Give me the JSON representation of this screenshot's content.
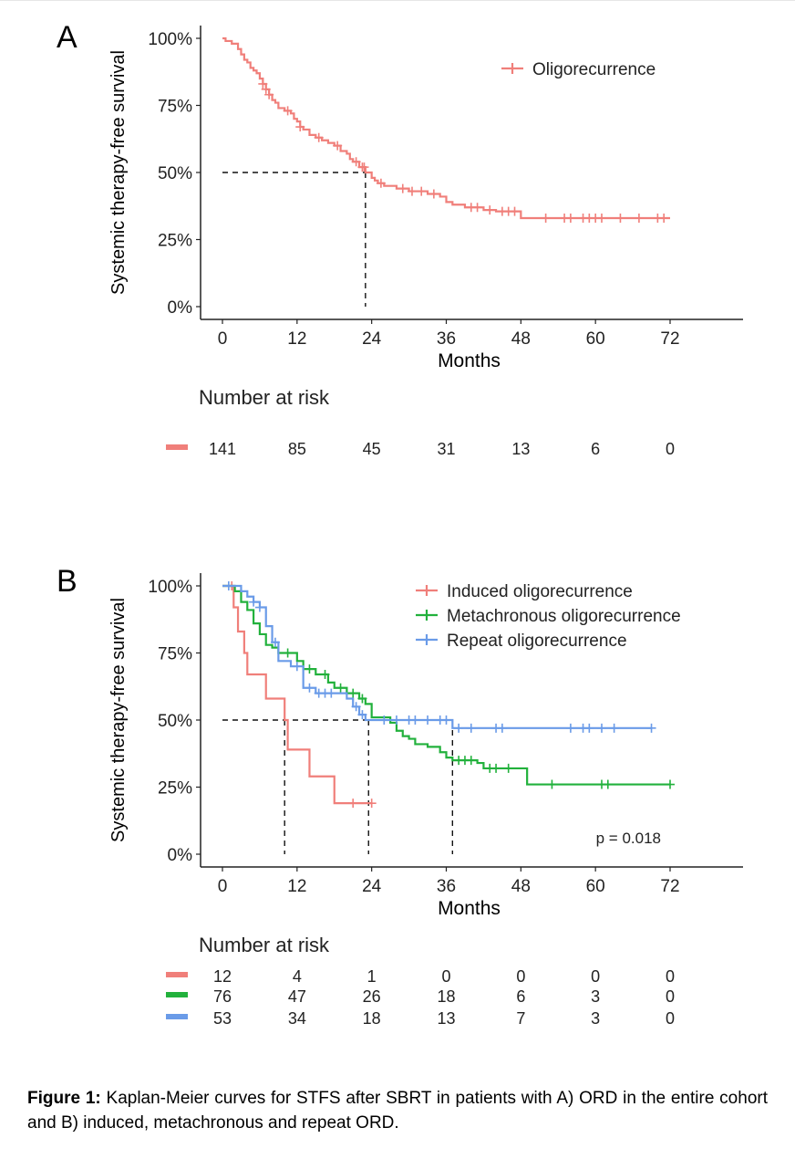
{
  "chart_data": [
    {
      "type": "line",
      "panel_label": "A",
      "ylabel": "Systemic therapy-free survival",
      "xlabel": "Months",
      "xticks": [
        "0",
        "12",
        "24",
        "36",
        "48",
        "60",
        "72"
      ],
      "yticks": [
        "0%",
        "25%",
        "50%",
        "75%",
        "100%"
      ],
      "xlim": [
        -3,
        82
      ],
      "ylim": [
        0,
        1
      ],
      "legend_position": "top-right",
      "median": {
        "x": 23,
        "y": 0.5
      },
      "series": [
        {
          "name": "Oligorecurrence",
          "color": "#F07F7A",
          "steps": [
            [
              0,
              1.0
            ],
            [
              0.5,
              0.99
            ],
            [
              1.5,
              0.98
            ],
            [
              2.5,
              0.96
            ],
            [
              3,
              0.94
            ],
            [
              3.5,
              0.92
            ],
            [
              4,
              0.91
            ],
            [
              4.5,
              0.89
            ],
            [
              5,
              0.88
            ],
            [
              5.5,
              0.87
            ],
            [
              6,
              0.85
            ],
            [
              6.5,
              0.83
            ],
            [
              7,
              0.81
            ],
            [
              7.5,
              0.79
            ],
            [
              8,
              0.77
            ],
            [
              8.5,
              0.76
            ],
            [
              9,
              0.74
            ],
            [
              10,
              0.73
            ],
            [
              11,
              0.72
            ],
            [
              11.5,
              0.7
            ],
            [
              12,
              0.69
            ],
            [
              12.5,
              0.67
            ],
            [
              13,
              0.66
            ],
            [
              14,
              0.64
            ],
            [
              15,
              0.63
            ],
            [
              16,
              0.62
            ],
            [
              17,
              0.61
            ],
            [
              18,
              0.6
            ],
            [
              19,
              0.58
            ],
            [
              20,
              0.57
            ],
            [
              20.5,
              0.55
            ],
            [
              21,
              0.54
            ],
            [
              22,
              0.52
            ],
            [
              23,
              0.5
            ],
            [
              24,
              0.48
            ],
            [
              24.5,
              0.47
            ],
            [
              25,
              0.46
            ],
            [
              26,
              0.45
            ],
            [
              28,
              0.44
            ],
            [
              30,
              0.43
            ],
            [
              33,
              0.42
            ],
            [
              35,
              0.41
            ],
            [
              36,
              0.39
            ],
            [
              37,
              0.38
            ],
            [
              39,
              0.37
            ],
            [
              42,
              0.36
            ],
            [
              44,
              0.355
            ],
            [
              48,
              0.33
            ],
            [
              72,
              0.33
            ]
          ],
          "censors": [
            [
              6.5,
              0.83
            ],
            [
              7,
              0.81
            ],
            [
              7.5,
              0.79
            ],
            [
              10.5,
              0.73
            ],
            [
              12.5,
              0.67
            ],
            [
              15.5,
              0.63
            ],
            [
              18.5,
              0.6
            ],
            [
              21.5,
              0.54
            ],
            [
              22.5,
              0.52
            ],
            [
              22.8,
              0.52
            ],
            [
              25.5,
              0.46
            ],
            [
              29,
              0.44
            ],
            [
              30.5,
              0.43
            ],
            [
              32,
              0.43
            ],
            [
              34,
              0.42
            ],
            [
              40,
              0.37
            ],
            [
              41,
              0.37
            ],
            [
              43,
              0.36
            ],
            [
              45,
              0.355
            ],
            [
              46,
              0.355
            ],
            [
              47,
              0.355
            ],
            [
              52,
              0.33
            ],
            [
              55,
              0.33
            ],
            [
              56,
              0.33
            ],
            [
              58,
              0.33
            ],
            [
              59,
              0.33
            ],
            [
              60,
              0.33
            ],
            [
              61,
              0.33
            ],
            [
              64,
              0.33
            ],
            [
              67,
              0.33
            ],
            [
              70,
              0.33
            ],
            [
              71,
              0.33
            ]
          ]
        }
      ],
      "risk_table": {
        "title": "Number at risk",
        "rows": [
          {
            "color": "#F07F7A",
            "values": [
              "141",
              "85",
              "45",
              "31",
              "13",
              "6",
              "0"
            ]
          }
        ]
      }
    },
    {
      "type": "line",
      "panel_label": "B",
      "ylabel": "Systemic therapy-free survival",
      "xlabel": "Months",
      "xticks": [
        "0",
        "12",
        "24",
        "36",
        "48",
        "60",
        "72"
      ],
      "yticks": [
        "0%",
        "25%",
        "50%",
        "75%",
        "100%"
      ],
      "xlim": [
        -3,
        82
      ],
      "ylim": [
        0,
        1
      ],
      "legend_position": "top-right",
      "annotation": "p = 0.018",
      "medians": [
        {
          "x": 10,
          "y": 0.5
        },
        {
          "x": 23.5,
          "y": 0.5
        },
        {
          "x": 37,
          "y": 0.5
        }
      ],
      "series": [
        {
          "name": "Induced oligorecurrence",
          "color": "#F07F7A",
          "steps": [
            [
              0,
              1.0
            ],
            [
              1.8,
              0.92
            ],
            [
              2.5,
              0.83
            ],
            [
              3.5,
              0.75
            ],
            [
              4,
              0.67
            ],
            [
              7,
              0.58
            ],
            [
              10,
              0.5
            ],
            [
              10.5,
              0.39
            ],
            [
              14,
              0.29
            ],
            [
              18,
              0.19
            ],
            [
              24,
              0.19
            ]
          ],
          "censors": [
            [
              1.5,
              1.0
            ],
            [
              21,
              0.19
            ],
            [
              24,
              0.19
            ]
          ]
        },
        {
          "name": "Metachronous oligorecurrence",
          "color": "#22B13C",
          "steps": [
            [
              0,
              1.0
            ],
            [
              2,
              0.98
            ],
            [
              3,
              0.94
            ],
            [
              4,
              0.91
            ],
            [
              5,
              0.86
            ],
            [
              6,
              0.82
            ],
            [
              7,
              0.78
            ],
            [
              8,
              0.77
            ],
            [
              9,
              0.75
            ],
            [
              12,
              0.72
            ],
            [
              13,
              0.69
            ],
            [
              15,
              0.67
            ],
            [
              17,
              0.64
            ],
            [
              18,
              0.62
            ],
            [
              20,
              0.6
            ],
            [
              22,
              0.58
            ],
            [
              23,
              0.56
            ],
            [
              24,
              0.51
            ],
            [
              27,
              0.49
            ],
            [
              28,
              0.46
            ],
            [
              29,
              0.44
            ],
            [
              30,
              0.43
            ],
            [
              31,
              0.41
            ],
            [
              33,
              0.4
            ],
            [
              35,
              0.38
            ],
            [
              36,
              0.36
            ],
            [
              37,
              0.35
            ],
            [
              41,
              0.34
            ],
            [
              42,
              0.32
            ],
            [
              49,
              0.26
            ],
            [
              72,
              0.26
            ]
          ],
          "censors": [
            [
              10.5,
              0.75
            ],
            [
              14,
              0.69
            ],
            [
              16.5,
              0.67
            ],
            [
              19,
              0.62
            ],
            [
              21,
              0.6
            ],
            [
              22.5,
              0.58
            ],
            [
              38,
              0.35
            ],
            [
              39,
              0.35
            ],
            [
              40,
              0.35
            ],
            [
              43,
              0.32
            ],
            [
              44,
              0.32
            ],
            [
              46,
              0.32
            ],
            [
              53,
              0.26
            ],
            [
              61,
              0.26
            ],
            [
              62,
              0.26
            ],
            [
              72,
              0.26
            ]
          ]
        },
        {
          "name": "Repeat oligorecurrence",
          "color": "#6A9BE8",
          "steps": [
            [
              0,
              1.0
            ],
            [
              3,
              0.98
            ],
            [
              4,
              0.96
            ],
            [
              5,
              0.94
            ],
            [
              6,
              0.92
            ],
            [
              7,
              0.85
            ],
            [
              8,
              0.79
            ],
            [
              9,
              0.72
            ],
            [
              11,
              0.7
            ],
            [
              13,
              0.62
            ],
            [
              15,
              0.6
            ],
            [
              20,
              0.58
            ],
            [
              21,
              0.55
            ],
            [
              22,
              0.52
            ],
            [
              23,
              0.5
            ],
            [
              37,
              0.47
            ],
            [
              69,
              0.47
            ]
          ],
          "censors": [
            [
              1,
              1.0
            ],
            [
              5,
              0.94
            ],
            [
              6,
              0.92
            ],
            [
              8.5,
              0.79
            ],
            [
              12,
              0.7
            ],
            [
              14,
              0.62
            ],
            [
              15.5,
              0.6
            ],
            [
              16.5,
              0.6
            ],
            [
              17.5,
              0.6
            ],
            [
              21.5,
              0.55
            ],
            [
              22.5,
              0.52
            ],
            [
              26,
              0.5
            ],
            [
              28,
              0.5
            ],
            [
              30,
              0.5
            ],
            [
              31,
              0.5
            ],
            [
              33,
              0.5
            ],
            [
              35,
              0.5
            ],
            [
              36,
              0.5
            ],
            [
              38,
              0.47
            ],
            [
              40,
              0.47
            ],
            [
              44,
              0.47
            ],
            [
              45,
              0.47
            ],
            [
              56,
              0.47
            ],
            [
              58,
              0.47
            ],
            [
              59,
              0.47
            ],
            [
              61,
              0.47
            ],
            [
              63,
              0.47
            ],
            [
              69,
              0.47
            ]
          ]
        }
      ],
      "risk_table": {
        "title": "Number at risk",
        "rows": [
          {
            "color": "#F07F7A",
            "values": [
              "12",
              "4",
              "1",
              "0",
              "0",
              "0",
              "0"
            ]
          },
          {
            "color": "#22B13C",
            "values": [
              "76",
              "47",
              "26",
              "18",
              "6",
              "3",
              "0"
            ]
          },
          {
            "color": "#6A9BE8",
            "values": [
              "53",
              "34",
              "18",
              "13",
              "7",
              "3",
              "0"
            ]
          }
        ]
      }
    }
  ],
  "caption": {
    "label": "Figure 1:",
    "text": " Kaplan-Meier curves for STFS after SBRT in patients with A) ORD in the entire cohort and B) induced, metachronous and repeat ORD."
  }
}
